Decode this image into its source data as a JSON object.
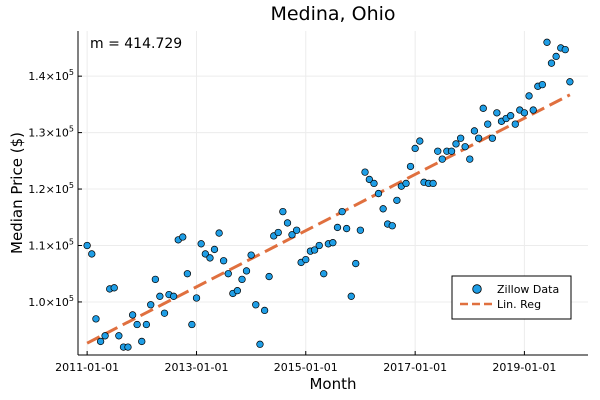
{
  "chart_data": {
    "type": "scatter",
    "title": "Medina, Ohio",
    "xlabel": "Month",
    "ylabel": "Median Price ($)",
    "annotation": "m = 414.729",
    "x_ticks": [
      "2011-01-01",
      "2013-01-01",
      "2015-01-01",
      "2017-01-01",
      "2019-01-01"
    ],
    "y_ticks": [
      {
        "value": 100000,
        "base": "1.0×10",
        "exp": "5"
      },
      {
        "value": 110000,
        "base": "1.1×10",
        "exp": "5"
      },
      {
        "value": 120000,
        "base": "1.2×10",
        "exp": "5"
      },
      {
        "value": 130000,
        "base": "1.3×10",
        "exp": "5"
      },
      {
        "value": 140000,
        "base": "1.4×10",
        "exp": "5"
      }
    ],
    "xlim": [
      "2010-11-01",
      "2020-03-01"
    ],
    "ylim": [
      90600,
      148000
    ],
    "grid": true,
    "legend_position": "bottom-right",
    "colors": {
      "scatter": "#1f9ee6",
      "regression": "#e0703f"
    },
    "series": [
      {
        "name": "Zillow Data",
        "kind": "scatter",
        "points": [
          [
            "2011-01-01",
            110000
          ],
          [
            "2011-02-01",
            108500
          ],
          [
            "2011-03-01",
            97000
          ],
          [
            "2011-04-01",
            93000
          ],
          [
            "2011-05-01",
            94000
          ],
          [
            "2011-06-01",
            102300
          ],
          [
            "2011-07-01",
            102500
          ],
          [
            "2011-08-01",
            94000
          ],
          [
            "2011-09-01",
            92000
          ],
          [
            "2011-10-01",
            92000
          ],
          [
            "2011-11-01",
            97700
          ],
          [
            "2011-12-01",
            96000
          ],
          [
            "2012-01-01",
            93000
          ],
          [
            "2012-02-01",
            96000
          ],
          [
            "2012-03-01",
            99500
          ],
          [
            "2012-04-01",
            104000
          ],
          [
            "2012-05-01",
            101000
          ],
          [
            "2012-06-01",
            98000
          ],
          [
            "2012-07-01",
            101300
          ],
          [
            "2012-08-01",
            101000
          ],
          [
            "2012-09-01",
            111000
          ],
          [
            "2012-10-01",
            111500
          ],
          [
            "2012-11-01",
            105000
          ],
          [
            "2012-12-01",
            96000
          ],
          [
            "2013-01-01",
            100700
          ],
          [
            "2013-02-01",
            110300
          ],
          [
            "2013-03-01",
            108500
          ],
          [
            "2013-04-01",
            107800
          ],
          [
            "2013-05-01",
            109300
          ],
          [
            "2013-06-01",
            112200
          ],
          [
            "2013-07-01",
            107300
          ],
          [
            "2013-08-01",
            105000
          ],
          [
            "2013-09-01",
            101500
          ],
          [
            "2013-10-01",
            102000
          ],
          [
            "2013-11-01",
            104000
          ],
          [
            "2013-12-01",
            105500
          ],
          [
            "2014-01-01",
            108300
          ],
          [
            "2014-02-01",
            99500
          ],
          [
            "2014-03-01",
            92500
          ],
          [
            "2014-04-01",
            98500
          ],
          [
            "2014-05-01",
            104500
          ],
          [
            "2014-06-01",
            111700
          ],
          [
            "2014-07-01",
            112300
          ],
          [
            "2014-08-01",
            116000
          ],
          [
            "2014-09-01",
            114000
          ],
          [
            "2014-10-01",
            111900
          ],
          [
            "2014-11-01",
            112700
          ],
          [
            "2014-12-01",
            107000
          ],
          [
            "2015-01-01",
            107500
          ],
          [
            "2015-02-01",
            109000
          ],
          [
            "2015-03-01",
            109200
          ],
          [
            "2015-04-01",
            110000
          ],
          [
            "2015-05-01",
            105000
          ],
          [
            "2015-06-01",
            110300
          ],
          [
            "2015-07-01",
            110500
          ],
          [
            "2015-08-01",
            113200
          ],
          [
            "2015-09-01",
            116000
          ],
          [
            "2015-10-01",
            113000
          ],
          [
            "2015-11-01",
            101000
          ],
          [
            "2015-12-01",
            106800
          ],
          [
            "2016-01-01",
            112700
          ],
          [
            "2016-02-01",
            123000
          ],
          [
            "2016-03-01",
            121700
          ],
          [
            "2016-04-01",
            121000
          ],
          [
            "2016-05-01",
            119200
          ],
          [
            "2016-06-01",
            116500
          ],
          [
            "2016-07-01",
            113800
          ],
          [
            "2016-08-01",
            113500
          ],
          [
            "2016-09-01",
            118000
          ],
          [
            "2016-10-01",
            120500
          ],
          [
            "2016-11-01",
            121000
          ],
          [
            "2016-12-01",
            124000
          ],
          [
            "2017-01-01",
            127200
          ],
          [
            "2017-02-01",
            128500
          ],
          [
            "2017-03-01",
            121200
          ],
          [
            "2017-04-01",
            121000
          ],
          [
            "2017-05-01",
            121000
          ],
          [
            "2017-06-01",
            126700
          ],
          [
            "2017-07-01",
            125300
          ],
          [
            "2017-08-01",
            126700
          ],
          [
            "2017-09-01",
            126700
          ],
          [
            "2017-10-01",
            128000
          ],
          [
            "2017-11-01",
            129000
          ],
          [
            "2017-12-01",
            127500
          ],
          [
            "2018-01-01",
            125300
          ],
          [
            "2018-02-01",
            130300
          ],
          [
            "2018-03-01",
            129000
          ],
          [
            "2018-04-01",
            134300
          ],
          [
            "2018-05-01",
            131500
          ],
          [
            "2018-06-01",
            129000
          ],
          [
            "2018-07-01",
            133500
          ],
          [
            "2018-08-01",
            132000
          ],
          [
            "2018-09-01",
            132500
          ],
          [
            "2018-10-01",
            133000
          ],
          [
            "2018-11-01",
            131500
          ],
          [
            "2018-12-01",
            134000
          ],
          [
            "2019-01-01",
            133500
          ],
          [
            "2019-02-01",
            136500
          ],
          [
            "2019-03-01",
            134000
          ],
          [
            "2019-04-01",
            138200
          ],
          [
            "2019-05-01",
            138500
          ],
          [
            "2019-06-01",
            146000
          ],
          [
            "2019-07-01",
            142300
          ],
          [
            "2019-08-01",
            143500
          ],
          [
            "2019-09-01",
            145000
          ],
          [
            "2019-10-01",
            144700
          ],
          [
            "2019-11-01",
            139000
          ]
        ]
      },
      {
        "name": "Lin. Reg",
        "kind": "line",
        "points": [
          [
            "2011-01-01",
            92700
          ],
          [
            "2019-11-01",
            136700
          ]
        ]
      }
    ]
  }
}
